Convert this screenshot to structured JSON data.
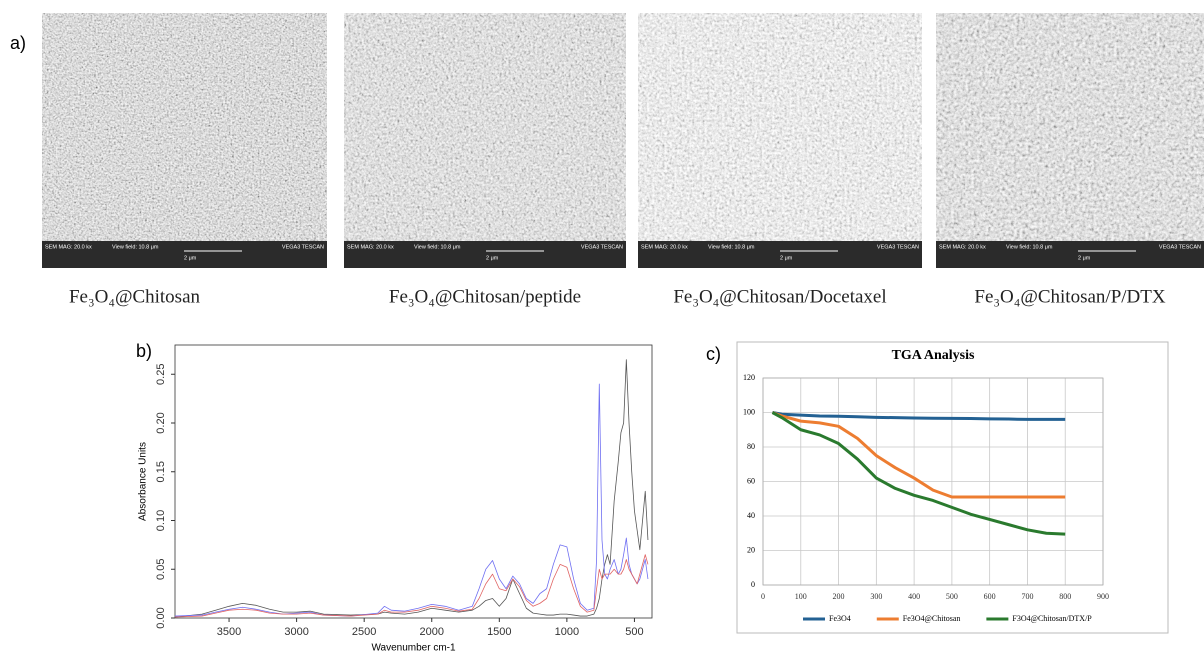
{
  "panel_labels": [
    "a)",
    "b)",
    "c)"
  ],
  "sem_images": [
    {
      "caption": "Fe₃O₄@Chitosan"
    },
    {
      "caption": "Fe₃O₄@Chitosan/peptide"
    },
    {
      "caption": "Fe₃O₄@Chitosan/Docetaxel"
    },
    {
      "caption": "Fe₃O₄@Chitosan/P/DTX"
    }
  ],
  "sem_info": {
    "mag": "SEM MAG: 20.0 kx",
    "field": "View field: 10.8 μm",
    "scale": "2 μm",
    "brand": "VEGA3 TESCAN"
  },
  "chart_data": [
    {
      "type": "line",
      "y_label": "Absorbance Units",
      "x_label": "Wavenumber cm-1",
      "xlim": [
        3900,
        370
      ],
      "xticks": [
        3500,
        3000,
        2500,
        2000,
        1500,
        1000,
        500
      ],
      "ylim": [
        0,
        0.28
      ],
      "yticks": [
        {
          "value": 0,
          "label": "0.00"
        },
        {
          "value": 0.05,
          "label": "0.05"
        },
        {
          "value": 0.1,
          "label": "0.10"
        },
        {
          "value": 0.15,
          "label": "0.15"
        },
        {
          "value": 0.2,
          "label": "0.20"
        },
        {
          "value": 0.25,
          "label": "0.25"
        }
      ],
      "grid": false,
      "x": [
        3900,
        3700,
        3600,
        3500,
        3400,
        3300,
        3200,
        3100,
        3000,
        2900,
        2800,
        2600,
        2400,
        2350,
        2300,
        2200,
        2100,
        2000,
        1900,
        1800,
        1700,
        1650,
        1600,
        1550,
        1500,
        1450,
        1400,
        1350,
        1300,
        1250,
        1200,
        1150,
        1100,
        1050,
        1000,
        950,
        900,
        850,
        800,
        780,
        760,
        740,
        720,
        700,
        680,
        650,
        620,
        600,
        580,
        560,
        540,
        520,
        500,
        480,
        460,
        440,
        420,
        400
      ],
      "series": [
        {
          "color": "#555555",
          "values": [
            0.001,
            0.004,
            0.008,
            0.012,
            0.015,
            0.013,
            0.009,
            0.006,
            0.006,
            0.007,
            0.004,
            0.003,
            0.004,
            0.006,
            0.005,
            0.004,
            0.006,
            0.01,
            0.008,
            0.006,
            0.008,
            0.012,
            0.018,
            0.02,
            0.012,
            0.02,
            0.04,
            0.025,
            0.01,
            0.005,
            0.004,
            0.003,
            0.003,
            0.004,
            0.004,
            0.003,
            0.002,
            0.002,
            0.004,
            0.01,
            0.02,
            0.04,
            0.055,
            0.065,
            0.055,
            0.12,
            0.16,
            0.19,
            0.2,
            0.265,
            0.2,
            0.15,
            0.11,
            0.09,
            0.07,
            0.1,
            0.13,
            0.08
          ]
        },
        {
          "color": "#6f6ff2",
          "values": [
            0.002,
            0.003,
            0.006,
            0.009,
            0.011,
            0.009,
            0.006,
            0.004,
            0.005,
            0.006,
            0.003,
            0.002,
            0.005,
            0.012,
            0.008,
            0.007,
            0.01,
            0.014,
            0.012,
            0.008,
            0.012,
            0.03,
            0.05,
            0.059,
            0.04,
            0.03,
            0.043,
            0.035,
            0.02,
            0.015,
            0.025,
            0.03,
            0.055,
            0.075,
            0.073,
            0.04,
            0.015,
            0.008,
            0.01,
            0.06,
            0.24,
            0.08,
            0.045,
            0.04,
            0.05,
            0.06,
            0.045,
            0.05,
            0.065,
            0.082,
            0.055,
            0.045,
            0.04,
            0.035,
            0.04,
            0.05,
            0.06,
            0.04
          ]
        },
        {
          "color": "#e06464",
          "values": [
            0.001,
            0.002,
            0.005,
            0.008,
            0.009,
            0.008,
            0.005,
            0.004,
            0.004,
            0.005,
            0.003,
            0.002,
            0.004,
            0.008,
            0.006,
            0.006,
            0.008,
            0.012,
            0.01,
            0.007,
            0.009,
            0.02,
            0.035,
            0.045,
            0.03,
            0.028,
            0.04,
            0.032,
            0.018,
            0.012,
            0.015,
            0.02,
            0.04,
            0.055,
            0.052,
            0.03,
            0.012,
            0.006,
            0.008,
            0.03,
            0.05,
            0.04,
            0.045,
            0.045,
            0.045,
            0.05,
            0.045,
            0.045,
            0.05,
            0.06,
            0.05,
            0.045,
            0.04,
            0.035,
            0.045,
            0.055,
            0.065,
            0.055
          ]
        }
      ]
    },
    {
      "type": "line",
      "title": "TGA Analysis",
      "xlim": [
        0,
        900
      ],
      "xticks": [
        0,
        100,
        200,
        300,
        400,
        500,
        600,
        700,
        800,
        900
      ],
      "ylim": [
        0,
        120
      ],
      "yticks": [
        0,
        20,
        40,
        60,
        80,
        100,
        120
      ],
      "grid": true,
      "legend": "bottom",
      "x": [
        25,
        50,
        100,
        150,
        200,
        250,
        300,
        350,
        400,
        450,
        500,
        550,
        600,
        650,
        700,
        750,
        800
      ],
      "series": [
        {
          "name": "Fe3O4",
          "color": "#236193",
          "values": [
            100,
            99,
            98.5,
            98,
            97.8,
            97.5,
            97.2,
            97,
            96.8,
            96.7,
            96.6,
            96.5,
            96.3,
            96.2,
            96,
            96,
            96
          ]
        },
        {
          "name": "Fe3O4@Chitosan",
          "color": "#ed7d31",
          "values": [
            100,
            98,
            95,
            94,
            92,
            85,
            75,
            68,
            62,
            55,
            51,
            51,
            51,
            51,
            51,
            51,
            51
          ]
        },
        {
          "name": "F3O4@Chitosan/DTX/P",
          "color": "#2a7a2e",
          "values": [
            100,
            97,
            90,
            87,
            82,
            73,
            62,
            56,
            52,
            49,
            45,
            41,
            38,
            35,
            32,
            30,
            29.5
          ]
        }
      ]
    }
  ]
}
